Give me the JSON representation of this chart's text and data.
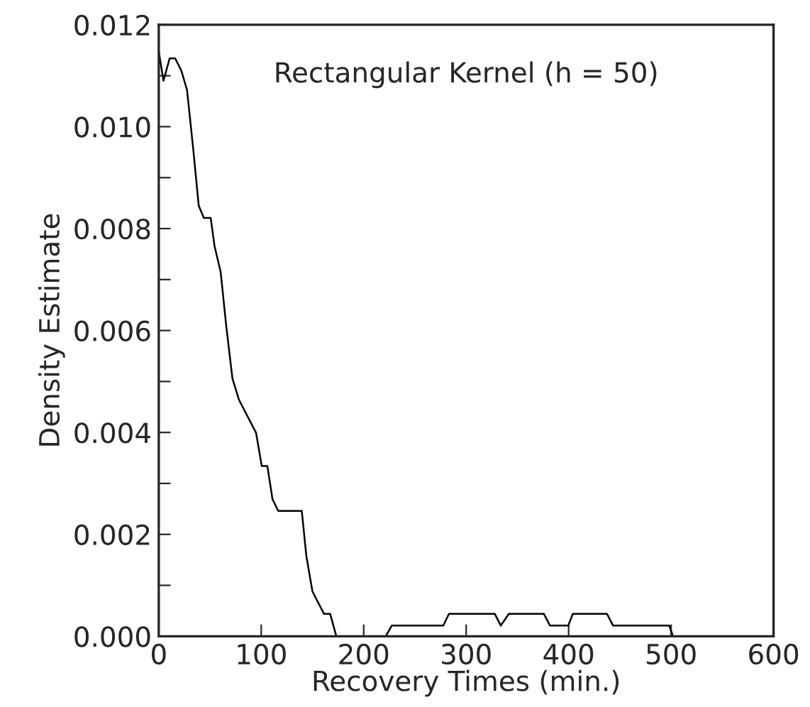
{
  "chart_data": {
    "type": "line",
    "xlabel": "Recovery Times (min.)",
    "ylabel": "Density Estimate",
    "annotations": [
      "Rectangular Kernel (h = 50)"
    ],
    "series": [
      {
        "color": "#000000",
        "x": [
          0,
          4.6,
          10.6,
          16,
          22,
          27.6,
          33.6,
          39,
          44,
          50.7,
          54.4,
          60.4,
          65.9,
          71.9,
          78.3,
          95,
          100.5,
          106,
          111,
          116.6,
          139.6,
          144,
          150,
          161.3,
          167.3,
          173.3,
          221.5,
          227.4,
          277.7,
          283.2,
          328,
          333.8,
          341.6,
          375.9,
          381.8,
          399.6,
          404.1,
          437.5,
          443.4,
          498.2,
          501.9
        ],
        "values": [
          0.01148,
          0.0109,
          0.01134,
          0.01134,
          0.0111,
          0.01072,
          0.00957,
          0.00845,
          0.00821,
          0.00821,
          0.00766,
          0.00715,
          0.00608,
          0.00506,
          0.00464,
          0.00399,
          0.00334,
          0.00334,
          0.00269,
          0.00246,
          0.00246,
          0.00158,
          0.00088,
          0.00044,
          0.00044,
          0,
          0,
          0.00021,
          0.00021,
          0.00044,
          0.00044,
          0.00021,
          0.00044,
          0.00044,
          0.00021,
          0.00021,
          0.00044,
          0.00044,
          0.00021,
          0.00021,
          0
        ]
      }
    ],
    "xlim": [
      0,
      600
    ],
    "xticks": [
      0,
      100,
      200,
      300,
      400,
      500,
      600
    ],
    "ylim": [
      0,
      0.012
    ],
    "yticks": [
      {
        "value": 0,
        "label": "0.000"
      },
      {
        "value": 0.001,
        "label": null
      },
      {
        "value": 0.002,
        "label": "0.002"
      },
      {
        "value": 0.003,
        "label": null
      },
      {
        "value": 0.004,
        "label": "0.004"
      },
      {
        "value": 0.005,
        "label": null
      },
      {
        "value": 0.006,
        "label": "0.006"
      },
      {
        "value": 0.007,
        "label": null
      },
      {
        "value": 0.008,
        "label": "0.008"
      },
      {
        "value": 0.009,
        "label": null
      },
      {
        "value": 0.01,
        "label": "0.010"
      },
      {
        "value": 0.011,
        "label": null
      },
      {
        "value": 0.012,
        "label": "0.012"
      }
    ],
    "grid": false,
    "legend": false,
    "marker": "none",
    "line_style": "solid"
  }
}
